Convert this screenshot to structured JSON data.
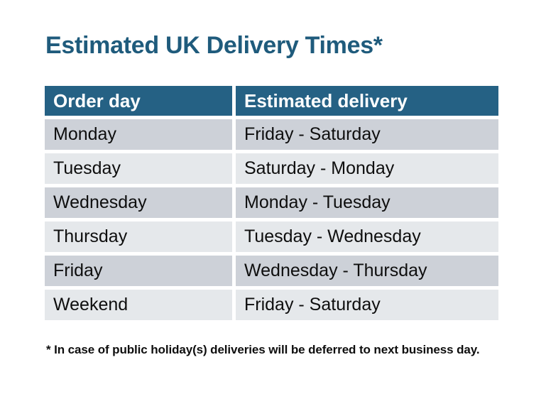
{
  "page": {
    "title": "Estimated UK Delivery Times*",
    "footnote": "* In case of public holiday(s) deliveries will be deferred to next business day."
  },
  "table": {
    "headers": [
      "Order day",
      "Estimated delivery"
    ],
    "rows": [
      {
        "order_day": "Monday",
        "estimated_delivery": "Friday - Saturday"
      },
      {
        "order_day": "Tuesday",
        "estimated_delivery": "Saturday - Monday"
      },
      {
        "order_day": "Wednesday",
        "estimated_delivery": "Monday - Tuesday"
      },
      {
        "order_day": "Thursday",
        "estimated_delivery": "Tuesday - Wednesday"
      },
      {
        "order_day": "Friday",
        "estimated_delivery": "Wednesday - Thursday"
      },
      {
        "order_day": "Weekend",
        "estimated_delivery": "Friday - Saturday"
      }
    ]
  },
  "colors": {
    "title_text": "#1F5B7C",
    "header_bg": "#256184",
    "header_text": "#FFFFFF",
    "row_dark_bg": "#CDD1D8",
    "row_light_bg": "#E5E8EB",
    "body_text": "#0E0E0E",
    "background": "#FFFFFF"
  }
}
